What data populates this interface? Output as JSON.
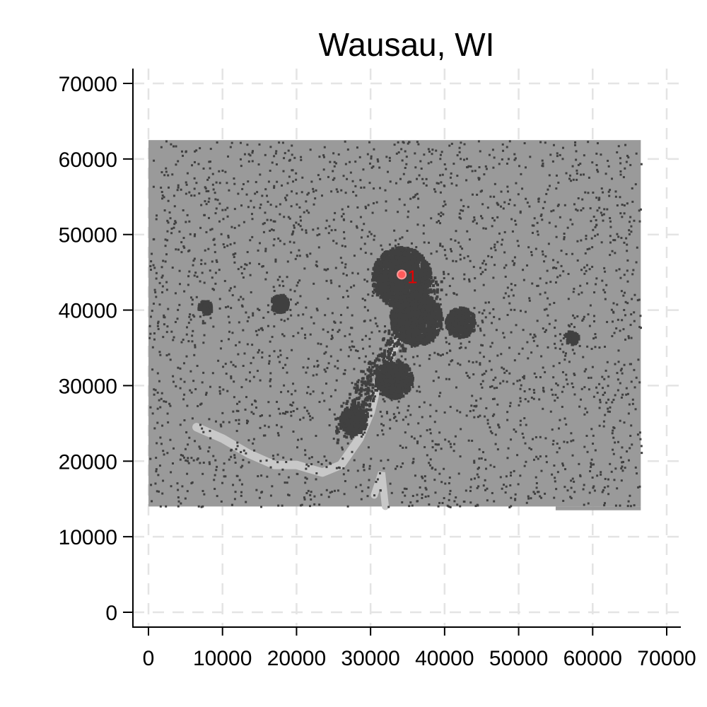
{
  "chart_data": {
    "type": "heatmap",
    "title": "Wausau, WI",
    "xlabel": "",
    "ylabel": "",
    "xlim": [
      0,
      70000
    ],
    "ylim": [
      0,
      70000
    ],
    "x_ticks": [
      0,
      10000,
      20000,
      30000,
      40000,
      50000,
      60000,
      70000
    ],
    "y_ticks": [
      0,
      10000,
      20000,
      30000,
      40000,
      50000,
      60000,
      70000
    ],
    "x_tick_labels": [
      "0",
      "10000",
      "20000",
      "30000",
      "40000",
      "50000",
      "60000",
      "70000"
    ],
    "y_tick_labels": [
      "0",
      "10000",
      "20000",
      "30000",
      "40000",
      "50000",
      "60000",
      "70000"
    ],
    "grid": true,
    "raster_extent": {
      "xmin": 0,
      "xmax": 66500,
      "ymin": 14000,
      "ymax": 62500
    },
    "raster_notch": {
      "xmin": 55000,
      "xmax": 66500,
      "ymin": 13500,
      "ymax": 14000
    },
    "colors": {
      "background_land": "#9a9a9a",
      "developed": "#404040",
      "water": "#c8c8c8",
      "marker": "#ff5a5a",
      "label": "#e60000",
      "grid": "#e4e4e4",
      "axis": "#000000"
    },
    "urban_cores": [
      {
        "x": 34000,
        "y": 44500,
        "r": 4000
      },
      {
        "x": 36000,
        "y": 39000,
        "r": 3500
      },
      {
        "x": 33000,
        "y": 31000,
        "r": 2500
      },
      {
        "x": 27500,
        "y": 25500,
        "r": 1800
      },
      {
        "x": 17500,
        "y": 41000,
        "r": 1200
      },
      {
        "x": 7500,
        "y": 40500,
        "r": 900
      },
      {
        "x": 57000,
        "y": 36500,
        "r": 900
      },
      {
        "x": 42000,
        "y": 38500,
        "r": 2000
      }
    ],
    "water_path": [
      [
        6500,
        24500
      ],
      [
        10000,
        23000
      ],
      [
        13500,
        21000
      ],
      [
        17000,
        19500
      ],
      [
        20000,
        19500
      ],
      [
        23500,
        18500
      ],
      [
        26000,
        19500
      ],
      [
        28500,
        23000
      ],
      [
        30000,
        26500
      ],
      [
        31000,
        30500
      ],
      [
        33000,
        34500
      ],
      [
        34500,
        38500
      ]
    ],
    "points": [
      {
        "x": 34200,
        "y": 44700,
        "label": "1"
      }
    ]
  }
}
